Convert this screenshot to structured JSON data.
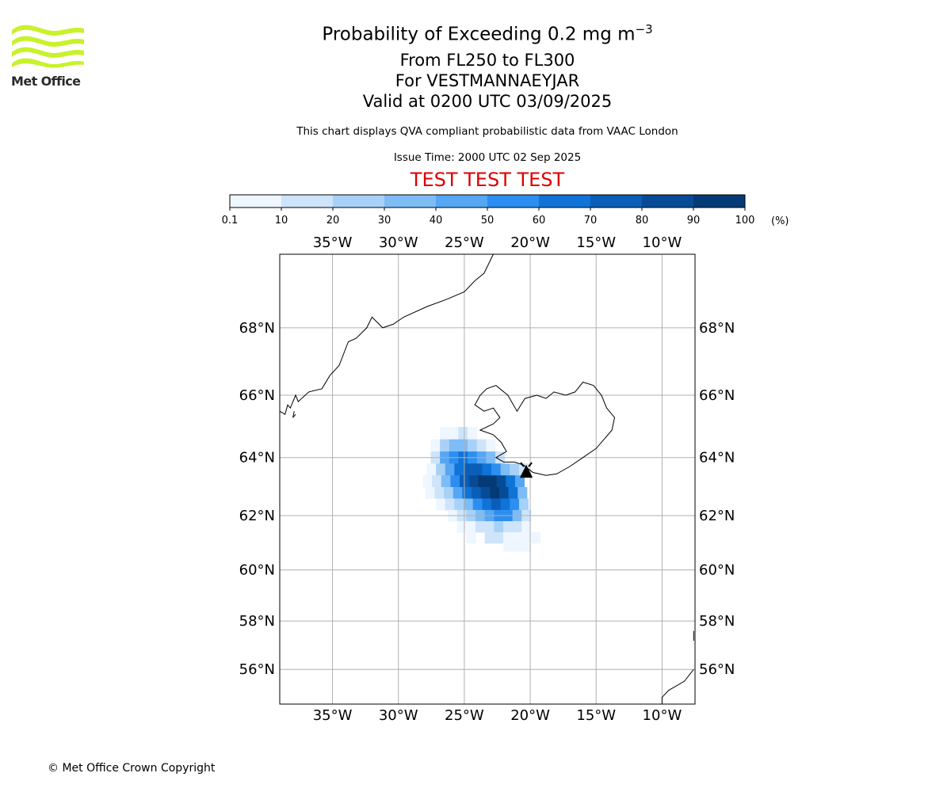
{
  "logo": {
    "text": "Met Office",
    "wave_color": "#c8f229"
  },
  "title": {
    "main": "Probability of Exceeding 0.2 mg m",
    "superscript": "−3",
    "line2": "From FL250 to FL300",
    "line3": "For VESTMANNAEYJAR",
    "line4": "Valid at 0200 UTC 03/09/2025"
  },
  "subtitle": "This chart displays QVA compliant probabilistic data from VAAC London",
  "issue_time": "Issue Time: 2000 UTC 02 Sep 2025",
  "test_banner": {
    "text": "TEST TEST TEST",
    "color": "#dd0000"
  },
  "colorbar": {
    "ticks": [
      "0.1",
      "10",
      "20",
      "30",
      "40",
      "50",
      "60",
      "70",
      "80",
      "90",
      "100"
    ],
    "unit": "(%)",
    "colors": [
      "#eef6ff",
      "#cde4fa",
      "#a8d1f8",
      "#7ebcf6",
      "#55a6f3",
      "#2c8ef0",
      "#0f73d8",
      "#0a5eb8",
      "#074b96",
      "#043a76",
      "#02284f"
    ]
  },
  "map": {
    "lon_range": [
      -39,
      -7.5
    ],
    "lat_range": [
      54.5,
      70
    ],
    "lon_ticks": [
      {
        "value": -35,
        "label": "35°W"
      },
      {
        "value": -30,
        "label": "30°W"
      },
      {
        "value": -25,
        "label": "25°W"
      },
      {
        "value": -20,
        "label": "20°W"
      },
      {
        "value": -15,
        "label": "15°W"
      },
      {
        "value": -10,
        "label": "10°W"
      }
    ],
    "lat_ticks": [
      {
        "value": 68,
        "label": "68°N"
      },
      {
        "value": 66,
        "label": "66°N"
      },
      {
        "value": 64,
        "label": "64°N"
      },
      {
        "value": 62,
        "label": "62°N"
      },
      {
        "value": 60,
        "label": "60°N"
      },
      {
        "value": 58,
        "label": "58°N"
      },
      {
        "value": 56,
        "label": "56°N"
      }
    ],
    "grid": true,
    "volcano": "VESTMANNAEYJAR"
  },
  "copyright": "© Met Office Crown Copyright"
}
